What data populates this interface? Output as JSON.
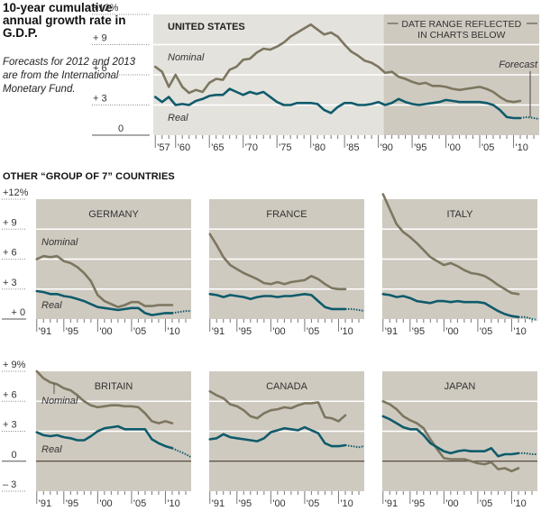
{
  "header": {
    "title": "10-year cumulative annual growth rate in G.D.P.",
    "subtitle": "Forecasts for 2012 and 2013 are from the International Monetary Fund."
  },
  "section_heading": "OTHER “GROUP OF 7” COUNTRIES",
  "colors": {
    "nominal": "#7d7660",
    "real": "#0f5b6b",
    "plot_bg_dark": "#cfcac0",
    "plot_bg_light": "#e4e2dd",
    "gridline": "#ffffff",
    "zero_line": "#3a2a1e"
  },
  "chart_data": [
    {
      "type": "line",
      "title": "UNITED STATES",
      "ylabel": "",
      "ylim": [
        0,
        12
      ],
      "yticks": [
        0,
        3,
        6,
        9,
        12
      ],
      "ytick_labels": [
        "0",
        "+ 3",
        "+ 6",
        "+ 9",
        "+12%"
      ],
      "xlim": [
        1956.7,
        2013.8
      ],
      "xticks": [
        1957,
        1960,
        1965,
        1970,
        1975,
        1980,
        1985,
        1990,
        1995,
        2000,
        2005,
        2010
      ],
      "xtick_labels": [
        "'57",
        "'60",
        "'65",
        "'70",
        "'75",
        "'80",
        "'85",
        "'90",
        "'95",
        "'00",
        "'05",
        "'10"
      ],
      "annotations": {
        "nominal_label": "Nominal",
        "real_label": "Real",
        "date_range_label_line1": "DATE RANGE REFLECTED",
        "date_range_label_line2": "IN CHARTS BELOW",
        "date_range_start": 1990.8,
        "forecast_label": "Forecast",
        "forecast_start": 2011.5
      },
      "x": [
        1957,
        1958,
        1959,
        1960,
        1961,
        1962,
        1963,
        1964,
        1965,
        1966,
        1967,
        1968,
        1969,
        1970,
        1971,
        1972,
        1973,
        1974,
        1975,
        1976,
        1977,
        1978,
        1979,
        1980,
        1981,
        1982,
        1983,
        1984,
        1985,
        1986,
        1987,
        1988,
        1989,
        1990,
        1991,
        1992,
        1993,
        1994,
        1995,
        1996,
        1997,
        1998,
        1999,
        2000,
        2001,
        2002,
        2003,
        2004,
        2005,
        2006,
        2007,
        2008,
        2009,
        2010,
        2011
      ],
      "series": [
        {
          "name": "Nominal",
          "values": [
            6.8,
            6.3,
            4.8,
            6.0,
            4.8,
            4.2,
            4.5,
            4.3,
            5.2,
            5.6,
            5.5,
            6.5,
            6.8,
            7.5,
            7.6,
            8.2,
            8.6,
            8.5,
            8.8,
            9.2,
            9.8,
            10.2,
            10.6,
            11.0,
            10.5,
            10.0,
            10.2,
            9.8,
            9.0,
            8.3,
            7.9,
            7.4,
            7.2,
            6.8,
            6.2,
            6.3,
            5.8,
            5.6,
            5.3,
            5.1,
            5.2,
            4.9,
            4.9,
            4.8,
            4.6,
            4.5,
            4.6,
            4.7,
            4.8,
            4.6,
            4.3,
            3.8,
            3.4,
            3.3,
            3.4
          ]
        },
        {
          "name": "Real",
          "values": [
            3.8,
            3.3,
            3.8,
            3.0,
            3.1,
            3.0,
            3.4,
            3.6,
            3.9,
            4.0,
            4.0,
            4.6,
            4.3,
            4.0,
            4.3,
            4.1,
            4.3,
            3.8,
            3.3,
            3.0,
            3.0,
            3.2,
            3.2,
            3.2,
            3.1,
            2.5,
            2.2,
            2.8,
            3.2,
            3.2,
            3.0,
            3.0,
            3.1,
            3.3,
            3.0,
            3.2,
            3.6,
            3.3,
            3.1,
            3.0,
            3.1,
            3.2,
            3.3,
            3.5,
            3.4,
            3.3,
            3.3,
            3.3,
            3.3,
            3.2,
            3.0,
            2.5,
            1.8,
            1.7,
            1.7
          ]
        },
        {
          "name": "Real (forecast)",
          "x": [
            2011,
            2012,
            2013,
            2013.8
          ],
          "values": [
            1.7,
            1.8,
            1.7,
            1.6
          ]
        }
      ]
    },
    {
      "type": "line",
      "title": "GERMANY",
      "ylim": [
        0,
        12
      ],
      "yticks": [
        0,
        3,
        6,
        9,
        12
      ],
      "ytick_labels": [
        "+ 0",
        "+ 3",
        "+ 6",
        "+ 9",
        "+12%"
      ],
      "xlim": [
        1990.9,
        2013.8
      ],
      "xticks": [
        1991,
        1995,
        2000,
        2005,
        2010
      ],
      "xtick_labels": [
        "'91",
        "'95",
        "'00",
        "'05",
        "'10"
      ],
      "annotations": {
        "nominal_label": "Nominal",
        "real_label": "Real"
      },
      "x": [
        1991,
        1992,
        1993,
        1994,
        1995,
        1996,
        1997,
        1998,
        1999,
        2000,
        2001,
        2002,
        2003,
        2004,
        2005,
        2006,
        2007,
        2008,
        2009,
        2010,
        2011
      ],
      "series": [
        {
          "name": "Nominal",
          "values": [
            6.0,
            6.3,
            6.2,
            6.3,
            5.8,
            5.6,
            5.2,
            4.6,
            3.8,
            2.4,
            1.8,
            1.5,
            1.2,
            1.4,
            1.7,
            1.7,
            1.3,
            1.3,
            1.4,
            1.4,
            1.4
          ]
        },
        {
          "name": "Real",
          "values": [
            2.8,
            2.7,
            2.5,
            2.5,
            2.3,
            2.2,
            2.0,
            1.8,
            1.5,
            1.2,
            1.1,
            1.0,
            0.9,
            1.0,
            1.1,
            1.1,
            0.6,
            0.4,
            0.5,
            0.6,
            0.6
          ]
        },
        {
          "name": "Real (forecast)",
          "x": [
            2011,
            2012,
            2013,
            2013.8
          ],
          "values": [
            0.6,
            0.7,
            0.8,
            0.8
          ]
        }
      ]
    },
    {
      "type": "line",
      "title": "FRANCE",
      "ylim": [
        0,
        12
      ],
      "xlim": [
        1990.9,
        2013.8
      ],
      "xticks": [
        1991,
        1995,
        2000,
        2005,
        2010
      ],
      "xtick_labels": [
        "'91",
        "'95",
        "'00",
        "'05",
        "'10"
      ],
      "x": [
        1991,
        1992,
        1993,
        1994,
        1995,
        1996,
        1997,
        1998,
        1999,
        2000,
        2001,
        2002,
        2003,
        2004,
        2005,
        2006,
        2007,
        2008,
        2009,
        2010,
        2011
      ],
      "series": [
        {
          "name": "Nominal",
          "values": [
            8.5,
            7.4,
            6.2,
            5.4,
            5.0,
            4.6,
            4.3,
            4.0,
            3.6,
            3.5,
            3.7,
            3.5,
            3.7,
            3.8,
            3.9,
            4.3,
            4.0,
            3.5,
            3.1,
            3.0,
            3.0
          ]
        },
        {
          "name": "Real",
          "values": [
            2.5,
            2.4,
            2.2,
            2.4,
            2.3,
            2.2,
            2.0,
            2.2,
            2.3,
            2.3,
            2.2,
            2.3,
            2.3,
            2.4,
            2.5,
            2.4,
            1.8,
            1.2,
            1.0,
            1.0,
            1.0
          ]
        },
        {
          "name": "Real (forecast)",
          "x": [
            2011,
            2012,
            2013,
            2013.8
          ],
          "values": [
            1.0,
            1.0,
            0.9,
            0.8
          ]
        }
      ]
    },
    {
      "type": "line",
      "title": "ITALY",
      "ylim": [
        0,
        12
      ],
      "xlim": [
        1990.9,
        2013.8
      ],
      "xticks": [
        1991,
        1995,
        2000,
        2005,
        2010
      ],
      "xtick_labels": [
        "'91",
        "'95",
        "'00",
        "'05",
        "'10"
      ],
      "x": [
        1991,
        1992,
        1993,
        1994,
        1995,
        1996,
        1997,
        1998,
        1999,
        2000,
        2001,
        2002,
        2003,
        2004,
        2005,
        2006,
        2007,
        2008,
        2009,
        2010,
        2011
      ],
      "series": [
        {
          "name": "Nominal",
          "values": [
            12.5,
            11.0,
            9.5,
            8.7,
            8.2,
            7.6,
            6.9,
            6.2,
            5.8,
            5.4,
            5.6,
            5.3,
            4.9,
            4.6,
            4.5,
            4.3,
            3.9,
            3.4,
            3.0,
            2.6,
            2.5
          ]
        },
        {
          "name": "Real",
          "values": [
            2.5,
            2.4,
            2.2,
            2.3,
            2.1,
            1.8,
            1.7,
            1.6,
            1.8,
            1.8,
            1.7,
            1.8,
            1.7,
            1.7,
            1.7,
            1.6,
            1.2,
            0.8,
            0.5,
            0.3,
            0.2
          ]
        },
        {
          "name": "Real (forecast)",
          "x": [
            2011,
            2012,
            2013,
            2013.8
          ],
          "values": [
            0.2,
            0.2,
            0.0,
            -0.1
          ]
        }
      ]
    },
    {
      "type": "line",
      "title": "BRITAIN",
      "ylim": [
        -3,
        9
      ],
      "yticks": [
        -3,
        0,
        3,
        6,
        9
      ],
      "ytick_labels": [
        "– 3",
        "0",
        "+ 3",
        "+ 6",
        "+ 9%"
      ],
      "xlim": [
        1990.9,
        2013.8
      ],
      "xticks": [
        1991,
        1995,
        2000,
        2005,
        2010
      ],
      "xtick_labels": [
        "'91",
        "'95",
        "'00",
        "'05",
        "'10"
      ],
      "annotations": {
        "nominal_label": "Nominal",
        "real_label": "Real"
      },
      "x": [
        1991,
        1992,
        1993,
        1994,
        1995,
        1996,
        1997,
        1998,
        1999,
        2000,
        2001,
        2002,
        2003,
        2004,
        2005,
        2006,
        2007,
        2008,
        2009,
        2010,
        2011
      ],
      "series": [
        {
          "name": "Nominal",
          "values": [
            9.0,
            8.3,
            7.9,
            7.7,
            7.3,
            7.1,
            6.6,
            6.0,
            5.6,
            5.4,
            5.5,
            5.6,
            5.6,
            5.5,
            5.5,
            5.4,
            4.8,
            4.0,
            3.8,
            4.0,
            3.8
          ]
        },
        {
          "name": "Real",
          "values": [
            2.9,
            2.6,
            2.5,
            2.6,
            2.4,
            2.3,
            2.1,
            2.1,
            2.5,
            3.0,
            3.3,
            3.4,
            3.5,
            3.2,
            3.2,
            3.2,
            3.2,
            2.2,
            1.8,
            1.5,
            1.3
          ]
        },
        {
          "name": "Real (forecast)",
          "x": [
            2011,
            2012,
            2013,
            2013.8
          ],
          "values": [
            1.3,
            1.0,
            0.7,
            0.4
          ]
        }
      ]
    },
    {
      "type": "line",
      "title": "CANADA",
      "ylim": [
        -3,
        9
      ],
      "xlim": [
        1990.9,
        2013.8
      ],
      "xticks": [
        1991,
        1995,
        2000,
        2005,
        2010
      ],
      "xtick_labels": [
        "'91",
        "'95",
        "'00",
        "'05",
        "'10"
      ],
      "x": [
        1991,
        1992,
        1993,
        1994,
        1995,
        1996,
        1997,
        1998,
        1999,
        2000,
        2001,
        2002,
        2003,
        2004,
        2005,
        2006,
        2007,
        2008,
        2009,
        2010,
        2011
      ],
      "series": [
        {
          "name": "Nominal",
          "values": [
            7.0,
            6.6,
            6.3,
            5.7,
            5.5,
            5.1,
            4.5,
            4.3,
            4.8,
            5.1,
            5.2,
            5.4,
            5.3,
            5.6,
            5.8,
            5.8,
            5.9,
            4.4,
            4.3,
            4.0,
            4.6
          ]
        },
        {
          "name": "Real",
          "values": [
            2.2,
            2.3,
            2.7,
            2.4,
            2.3,
            2.2,
            2.1,
            2.0,
            2.3,
            2.9,
            3.1,
            3.3,
            3.2,
            3.1,
            3.4,
            3.1,
            2.8,
            1.8,
            1.5,
            1.5,
            1.6
          ]
        },
        {
          "name": "Real (forecast)",
          "x": [
            2011,
            2012,
            2013,
            2013.8
          ],
          "values": [
            1.6,
            1.5,
            1.4,
            1.5
          ]
        }
      ]
    },
    {
      "type": "line",
      "title": "JAPAN",
      "ylim": [
        -3,
        9
      ],
      "xlim": [
        1990.9,
        2013.8
      ],
      "xticks": [
        1991,
        1995,
        2000,
        2005,
        2010
      ],
      "xtick_labels": [
        "'91",
        "'95",
        "'00",
        "'05",
        "'10"
      ],
      "x": [
        1991,
        1992,
        1993,
        1994,
        1995,
        1996,
        1997,
        1998,
        1999,
        2000,
        2001,
        2002,
        2003,
        2004,
        2005,
        2006,
        2007,
        2008,
        2009,
        2010,
        2011
      ],
      "series": [
        {
          "name": "Nominal",
          "values": [
            6.0,
            5.7,
            5.2,
            4.5,
            4.1,
            3.8,
            3.3,
            2.2,
            1.2,
            0.3,
            0.2,
            0.2,
            0.2,
            0.0,
            -0.2,
            -0.3,
            -0.1,
            -0.8,
            -0.7,
            -1.0,
            -0.7
          ]
        },
        {
          "name": "Real",
          "values": [
            4.5,
            4.2,
            3.8,
            3.4,
            3.2,
            3.2,
            2.6,
            1.8,
            1.4,
            1.0,
            0.8,
            1.0,
            1.1,
            1.0,
            1.0,
            1.0,
            1.3,
            0.5,
            0.7,
            0.7,
            0.8
          ]
        },
        {
          "name": "Real (forecast)",
          "x": [
            2011,
            2012,
            2013,
            2013.8
          ],
          "values": [
            0.8,
            0.8,
            0.7,
            0.7
          ]
        }
      ]
    }
  ]
}
